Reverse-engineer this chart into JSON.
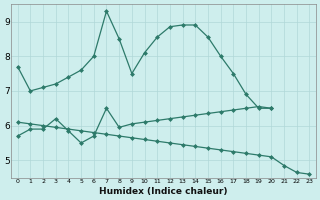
{
  "xlabel": "Humidex (Indice chaleur)",
  "bg_color": "#ceeeed",
  "line_color": "#2d7a6a",
  "grid_color": "#b0d8d8",
  "line1_x": [
    0,
    1,
    2,
    3,
    4,
    5,
    6,
    7,
    8,
    9,
    10,
    11,
    12,
    13,
    14,
    15,
    16,
    17,
    18,
    19,
    20
  ],
  "line1_y": [
    7.7,
    7.0,
    7.1,
    7.2,
    7.4,
    7.6,
    8.0,
    9.3,
    8.5,
    7.5,
    8.1,
    8.55,
    8.85,
    8.9,
    8.9,
    8.55,
    8.0,
    7.5,
    6.9,
    6.5,
    6.5
  ],
  "line2_x": [
    0,
    1,
    2,
    3,
    4,
    5,
    6,
    7,
    8,
    9,
    10,
    11,
    12,
    13,
    14,
    15,
    16,
    17,
    18,
    19,
    20
  ],
  "line2_y": [
    5.7,
    5.9,
    5.9,
    6.2,
    5.85,
    5.5,
    5.7,
    6.5,
    5.95,
    6.05,
    6.1,
    6.15,
    6.2,
    6.25,
    6.3,
    6.35,
    6.4,
    6.45,
    6.5,
    6.55,
    6.5
  ],
  "line3_x": [
    0,
    1,
    2,
    3,
    4,
    5,
    6,
    7,
    8,
    9,
    10,
    11,
    12,
    13,
    14,
    15,
    16,
    17,
    18,
    19,
    20,
    21,
    22,
    23
  ],
  "line3_y": [
    6.1,
    6.05,
    6.0,
    5.95,
    5.9,
    5.85,
    5.8,
    5.75,
    5.7,
    5.65,
    5.6,
    5.55,
    5.5,
    5.45,
    5.4,
    5.35,
    5.3,
    5.25,
    5.2,
    5.15,
    5.1,
    4.85,
    4.65,
    4.6
  ],
  "ylim": [
    4.5,
    9.5
  ],
  "xlim": [
    -0.5,
    23.5
  ],
  "yticks": [
    5,
    6,
    7,
    8,
    9
  ],
  "xticks": [
    0,
    1,
    2,
    3,
    4,
    5,
    6,
    7,
    8,
    9,
    10,
    11,
    12,
    13,
    14,
    15,
    16,
    17,
    18,
    19,
    20,
    21,
    22,
    23
  ]
}
